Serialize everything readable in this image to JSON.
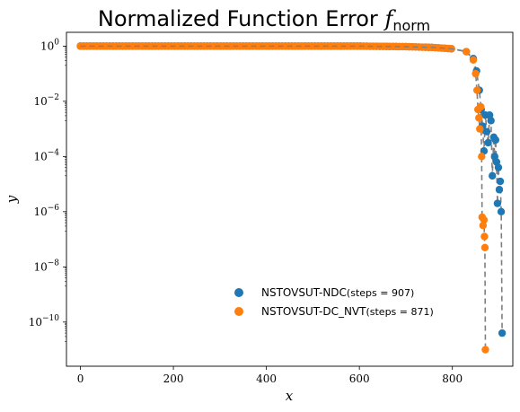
{
  "chart_data": {
    "type": "scatter",
    "title_main": "Normalized Function Error ",
    "title_math": "f",
    "title_sub": "norm",
    "xlabel": "x",
    "ylabel": "y",
    "xlim": [
      -30,
      930
    ],
    "ylog10lim": [
      -11.6,
      0.5
    ],
    "x_ticks": [
      0,
      200,
      400,
      600,
      800
    ],
    "y_ticks": [
      {
        "exp": 0,
        "base": "10",
        "sup": "0"
      },
      {
        "exp": -2,
        "base": "10",
        "sup": "−2"
      },
      {
        "exp": -4,
        "base": "10",
        "sup": "−4"
      },
      {
        "exp": -6,
        "base": "10",
        "sup": "−6"
      },
      {
        "exp": -8,
        "base": "10",
        "sup": "−8"
      },
      {
        "exp": -10,
        "base": "10",
        "sup": "−10"
      }
    ],
    "legend_position": "lower-center",
    "series": [
      {
        "name": "NSTOVSUT-NDC",
        "steps_label": "(steps = 907)",
        "steps": 907,
        "color": "#1f77b4",
        "line_color": "#7f7f7f",
        "points_log10": [
          [
            0,
            0
          ],
          [
            40,
            0
          ],
          [
            100,
            0
          ],
          [
            200,
            0
          ],
          [
            300,
            0
          ],
          [
            400,
            0
          ],
          [
            500,
            0
          ],
          [
            600,
            0
          ],
          [
            700,
            -0.02
          ],
          [
            760,
            -0.05
          ],
          [
            800,
            -0.1
          ],
          [
            830,
            -0.2
          ],
          [
            845,
            -0.45
          ],
          [
            852,
            -0.9
          ],
          [
            858,
            -1.6
          ],
          [
            862,
            -2.3
          ],
          [
            865,
            -2.9
          ],
          [
            868,
            -3.8
          ],
          [
            871,
            -2.5
          ],
          [
            874,
            -3.1
          ],
          [
            877,
            -3.5
          ],
          [
            880,
            -2.5
          ],
          [
            883,
            -2.7
          ],
          [
            886,
            -4.7
          ],
          [
            889,
            -3.3
          ],
          [
            891,
            -4.0
          ],
          [
            893,
            -3.4
          ],
          [
            895,
            -4.2
          ],
          [
            897,
            -5.7
          ],
          [
            899,
            -4.4
          ],
          [
            901,
            -5.2
          ],
          [
            903,
            -4.9
          ],
          [
            905,
            -6.0
          ],
          [
            907,
            -10.4
          ]
        ]
      },
      {
        "name": "NSTOVSUT-DC_NVT",
        "steps_label": "(steps = 871)",
        "steps": 871,
        "color": "#ff7f0e",
        "line_color": "#7f7f7f",
        "points_log10": [
          [
            0,
            0
          ],
          [
            40,
            0
          ],
          [
            100,
            0
          ],
          [
            200,
            0
          ],
          [
            300,
            0
          ],
          [
            400,
            0
          ],
          [
            500,
            0
          ],
          [
            600,
            0
          ],
          [
            700,
            -0.02
          ],
          [
            760,
            -0.05
          ],
          [
            800,
            -0.1
          ],
          [
            830,
            -0.2
          ],
          [
            845,
            -0.5
          ],
          [
            850,
            -1.0
          ],
          [
            853,
            -1.6
          ],
          [
            855,
            -2.3
          ],
          [
            857,
            -2.6
          ],
          [
            859,
            -3.0
          ],
          [
            861,
            -2.2
          ],
          [
            863,
            -4.0
          ],
          [
            864,
            -6.2
          ],
          [
            866,
            -6.5
          ],
          [
            868,
            -6.3
          ],
          [
            869,
            -6.9
          ],
          [
            870,
            -7.3
          ],
          [
            871,
            -11.0
          ]
        ]
      }
    ]
  }
}
